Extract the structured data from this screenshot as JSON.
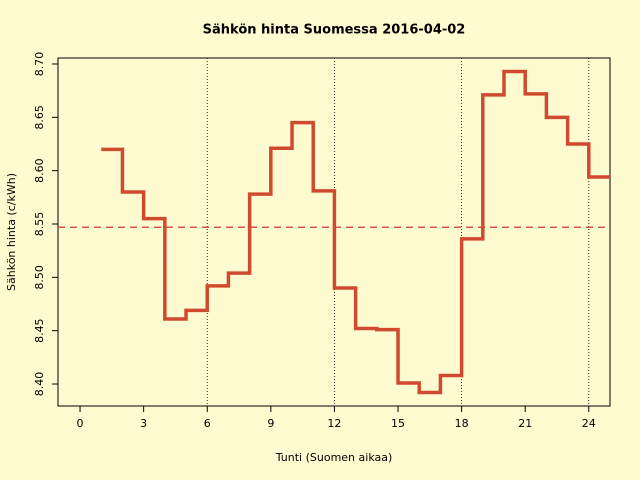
{
  "chart_data": {
    "type": "step",
    "title": "Sähkön hinta Suomessa 2016-04-02",
    "xlabel": "Tunti (Suomen aikaa)",
    "ylabel": "Sähkön hinta (c/kWh)",
    "x": [
      1,
      2,
      3,
      4,
      5,
      6,
      7,
      8,
      9,
      10,
      11,
      12,
      13,
      14,
      15,
      16,
      17,
      18,
      19,
      20,
      21,
      22,
      23,
      24,
      25
    ],
    "series": [
      {
        "color": "#d04a2f",
        "values": [
          8.62,
          8.58,
          8.555,
          8.461,
          8.469,
          8.492,
          8.504,
          8.578,
          8.621,
          8.645,
          8.581,
          8.49,
          8.452,
          8.451,
          8.401,
          8.392,
          8.408,
          8.536,
          8.671,
          8.693,
          8.672,
          8.65,
          8.625,
          8.594,
          8.594
        ]
      }
    ],
    "mean_line": {
      "value": 8.547,
      "color": "#d9534f"
    },
    "vlines": [
      6,
      12,
      18,
      24
    ],
    "xlim": [
      -1.04,
      25
    ],
    "ylim": [
      8.3794,
      8.7056
    ],
    "xticks": [
      0,
      3,
      6,
      9,
      12,
      15,
      18,
      21,
      24
    ],
    "yticks": [
      {
        "value": 8.4,
        "label": "8.40"
      },
      {
        "value": 8.45,
        "label": "8.45"
      },
      {
        "value": 8.5,
        "label": "8.50"
      },
      {
        "value": 8.55,
        "label": "8.55"
      },
      {
        "value": 8.6,
        "label": "8.60"
      },
      {
        "value": 8.65,
        "label": "8.65"
      },
      {
        "value": 8.7,
        "label": "8.70"
      }
    ]
  }
}
